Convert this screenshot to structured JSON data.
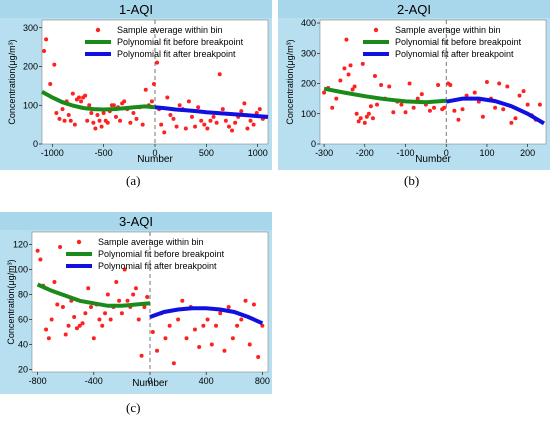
{
  "colors": {
    "panel_bg": "#b7dff0",
    "title_bg": "#a8d6ea",
    "plot_bg": "#ffffff",
    "points": "#ff2020",
    "fit_before": "#1a8a1a",
    "fit_after": "#1010e0",
    "breakpoint": "#555555"
  },
  "legend_labels": {
    "points": "Sample average within bin",
    "fit_before": "Polynomial fit before breakpoint",
    "fit_after": "Polynomial fit after breakpoint"
  },
  "chart_data": [
    {
      "type": "scatter",
      "title": "1-AQI",
      "subcaption": "(a)",
      "xlabel": "Number",
      "ylabel": "Concentration(μg/m³)",
      "xlim": [
        -1100,
        1100
      ],
      "ylim": [
        0,
        320
      ],
      "xticks": [
        -1000,
        -500,
        0,
        500,
        1000
      ],
      "yticks": [
        0,
        100,
        200,
        300
      ],
      "breakpoint": 0,
      "legend": "top-right",
      "points": {
        "x": [
          -1080,
          -1060,
          -1020,
          -980,
          -960,
          -930,
          -900,
          -880,
          -860,
          -840,
          -820,
          -800,
          -780,
          -760,
          -740,
          -720,
          -700,
          -680,
          -660,
          -640,
          -620,
          -600,
          -580,
          -560,
          -540,
          -520,
          -500,
          -480,
          -460,
          -440,
          -420,
          -400,
          -380,
          -360,
          -340,
          -320,
          -300,
          -270,
          -240,
          -210,
          -180,
          -150,
          -120,
          -90,
          -60,
          -30,
          -10,
          20,
          40,
          60,
          90,
          120,
          150,
          180,
          210,
          240,
          270,
          300,
          330,
          360,
          390,
          420,
          450,
          480,
          510,
          540,
          570,
          600,
          630,
          660,
          690,
          720,
          750,
          780,
          810,
          840,
          870,
          900,
          930,
          960,
          990,
          1020,
          1050,
          1080
        ],
        "y": [
          240,
          270,
          155,
          205,
          80,
          65,
          90,
          60,
          110,
          75,
          60,
          130,
          50,
          115,
          120,
          110,
          120,
          125,
          60,
          100,
          80,
          55,
          40,
          75,
          60,
          45,
          80,
          60,
          55,
          85,
          100,
          100,
          70,
          95,
          60,
          105,
          110,
          90,
          55,
          80,
          65,
          95,
          50,
          140,
          100,
          110,
          155,
          210,
          90,
          50,
          30,
          120,
          75,
          65,
          45,
          100,
          90,
          40,
          110,
          70,
          45,
          95,
          60,
          50,
          40,
          60,
          70,
          55,
          180,
          90,
          60,
          45,
          35,
          55,
          70,
          85,
          105,
          40,
          60,
          50,
          80,
          90,
          65,
          70
        ]
      },
      "fit_before": {
        "x": [
          -1100,
          -1000,
          -900,
          -800,
          -700,
          -600,
          -500,
          -400,
          -300,
          -200,
          -100,
          0
        ],
        "y": [
          135,
          120,
          108,
          99,
          93,
          90,
          89,
          90,
          92,
          95,
          97,
          95
        ]
      },
      "fit_after": {
        "x": [
          0,
          100,
          200,
          300,
          400,
          500,
          600,
          700,
          800,
          900,
          1000,
          1100
        ],
        "y": [
          95,
          92,
          89,
          87,
          85,
          82,
          80,
          78,
          76,
          74,
          72,
          70
        ]
      }
    },
    {
      "type": "scatter",
      "title": "2-AQI",
      "subcaption": "(b)",
      "xlabel": "Number",
      "ylabel": "Concentration(μg/m³)",
      "xlim": [
        -310,
        245
      ],
      "ylim": [
        0,
        410
      ],
      "xticks": [
        -300,
        -200,
        -100,
        0,
        100,
        200
      ],
      "yticks": [
        0,
        100,
        200,
        300,
        400
      ],
      "breakpoint": 0,
      "legend": "top-right",
      "points": {
        "x": [
          -300,
          -290,
          -280,
          -270,
          -260,
          -250,
          -245,
          -240,
          -235,
          -230,
          -225,
          -220,
          -215,
          -210,
          -205,
          -200,
          -195,
          -190,
          -185,
          -180,
          -175,
          -170,
          -160,
          -150,
          -140,
          -130,
          -120,
          -110,
          -100,
          -90,
          -80,
          -70,
          -60,
          -50,
          -40,
          -30,
          -20,
          -10,
          -5,
          5,
          10,
          20,
          30,
          40,
          50,
          60,
          70,
          80,
          90,
          100,
          110,
          120,
          130,
          140,
          150,
          160,
          170,
          180,
          190,
          200,
          210,
          220,
          230
        ],
        "y": [
          170,
          185,
          120,
          150,
          210,
          250,
          345,
          230,
          260,
          180,
          190,
          100,
          75,
          85,
          265,
          70,
          90,
          100,
          125,
          85,
          225,
          130,
          195,
          150,
          190,
          105,
          140,
          130,
          105,
          200,
          120,
          150,
          165,
          130,
          110,
          120,
          195,
          115,
          120,
          200,
          195,
          110,
          80,
          115,
          160,
          150,
          170,
          140,
          90,
          205,
          150,
          120,
          200,
          115,
          190,
          70,
          85,
          160,
          175,
          130,
          95,
          80,
          130
        ]
      },
      "fit_before": {
        "x": [
          -300,
          -250,
          -200,
          -150,
          -100,
          -50,
          0
        ],
        "y": [
          183,
          170,
          158,
          148,
          141,
          138,
          143
        ]
      },
      "fit_after": {
        "x": [
          0,
          40,
          80,
          120,
          160,
          200,
          240
        ],
        "y": [
          140,
          150,
          150,
          142,
          125,
          100,
          68
        ]
      }
    },
    {
      "type": "scatter",
      "title": "3-AQI",
      "subcaption": "(c)",
      "xlabel": "Number",
      "ylabel": "Concentration(μg/m³)",
      "xlim": [
        -840,
        840
      ],
      "ylim": [
        18,
        130
      ],
      "xticks": [
        -800,
        -400,
        0,
        400,
        800
      ],
      "yticks": [
        20,
        40,
        60,
        80,
        100,
        120
      ],
      "breakpoint": 0,
      "legend": "top-right",
      "points": {
        "x": [
          -800,
          -780,
          -760,
          -740,
          -720,
          -700,
          -680,
          -660,
          -640,
          -620,
          -600,
          -580,
          -560,
          -540,
          -520,
          -500,
          -480,
          -460,
          -440,
          -420,
          -400,
          -380,
          -360,
          -340,
          -320,
          -300,
          -280,
          -260,
          -240,
          -220,
          -200,
          -180,
          -160,
          -140,
          -120,
          -100,
          -80,
          -60,
          -40,
          -20,
          20,
          50,
          80,
          110,
          140,
          170,
          200,
          230,
          260,
          290,
          320,
          350,
          380,
          410,
          440,
          470,
          500,
          530,
          560,
          590,
          620,
          650,
          680,
          710,
          740,
          770,
          800
        ],
        "y": [
          115,
          108,
          87,
          52,
          45,
          60,
          90,
          72,
          118,
          70,
          48,
          55,
          75,
          62,
          53,
          55,
          57,
          65,
          85,
          70,
          45,
          72,
          60,
          55,
          65,
          80,
          60,
          70,
          90,
          75,
          65,
          100,
          75,
          70,
          80,
          85,
          60,
          31,
          70,
          78,
          50,
          35,
          65,
          45,
          55,
          25,
          60,
          75,
          45,
          70,
          52,
          38,
          55,
          60,
          40,
          55,
          65,
          35,
          70,
          45,
          55,
          60,
          75,
          40,
          72,
          30,
          55
        ]
      },
      "fit_before": {
        "x": [
          -800,
          -700,
          -600,
          -500,
          -400,
          -300,
          -200,
          -100,
          0
        ],
        "y": [
          88,
          83,
          79,
          75,
          73,
          71,
          71,
          72,
          73
        ]
      },
      "fit_after": {
        "x": [
          0,
          100,
          200,
          300,
          400,
          500,
          600,
          700,
          800
        ],
        "y": [
          62,
          66,
          68,
          69,
          69,
          68,
          66,
          62,
          57
        ]
      }
    }
  ]
}
